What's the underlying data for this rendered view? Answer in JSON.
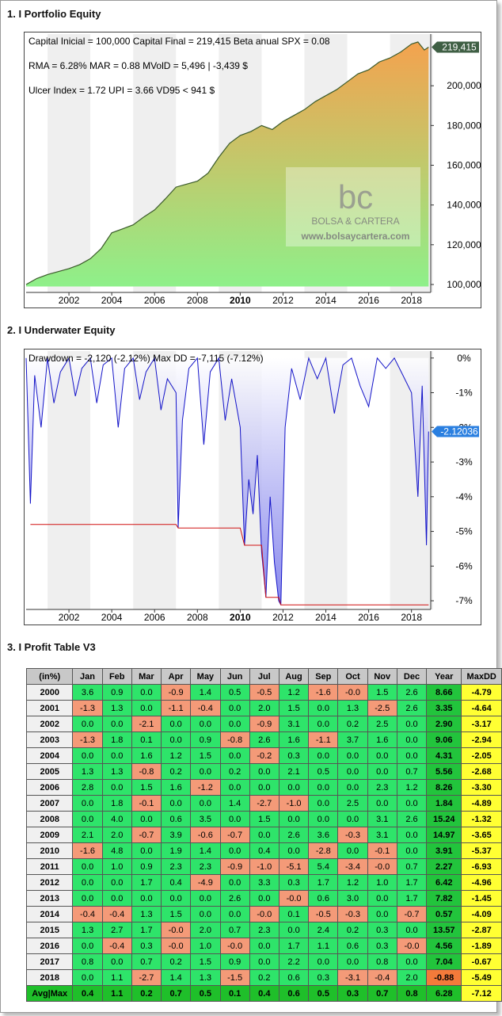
{
  "sections": {
    "equity_title": "1. I Portfolio Equity",
    "underwater_title": "2. I Underwater Equity",
    "profit_title": "3. I Profit Table V3"
  },
  "equity": {
    "line1": "Capital Inicial = 100,000  Capital Final = 219,415   Beta anual SPX = 0.08",
    "line2": "RMA = 6.28%   MAR = 0.88   MVolD = 5,496 | -3,439 $",
    "line3": "Ulcer Index = 1.72   UPI = 3.66   VD95 < 941 $",
    "last_label": "219,415",
    "watermark_logo": "bc",
    "watermark_name": "BOLSA & CARTERA",
    "watermark_url": "www.bolsaycartera.com",
    "colors": {
      "fill_top": "#f4a24e",
      "fill_bottom": "#8ef08a",
      "line": "#3a5a2a",
      "badge": "#3f5f44"
    }
  },
  "underwater": {
    "line1": "Drawdown = -2,120 (-2.12%)      Max DD = -7,115 (-7.12%)",
    "last_label": "-2.12036",
    "colors": {
      "line": "#1414c8",
      "maxdd": "#d01010",
      "badge": "#2a7fe0"
    }
  },
  "chart_data": [
    {
      "type": "area",
      "title": "1. I Portfolio Equity",
      "x_ticks": [
        "2002",
        "2004",
        "2006",
        "2008",
        "2010",
        "2012",
        "2014",
        "2016",
        "2018"
      ],
      "y_ticks": [
        "100,000",
        "120,000",
        "140,000",
        "160,000",
        "180,000",
        "200,000"
      ],
      "ylim": [
        96000,
        226000
      ],
      "xlim": [
        2000.0,
        2018.9
      ],
      "x": [
        2000.0,
        2000.5,
        2001.0,
        2001.5,
        2002.0,
        2002.5,
        2003.0,
        2003.5,
        2004.0,
        2004.5,
        2005.0,
        2005.5,
        2006.0,
        2006.5,
        2007.0,
        2007.5,
        2008.0,
        2008.5,
        2009.0,
        2009.5,
        2010.0,
        2010.5,
        2011.0,
        2011.5,
        2012.0,
        2012.5,
        2013.0,
        2013.5,
        2014.0,
        2014.5,
        2015.0,
        2015.5,
        2016.0,
        2016.5,
        2017.0,
        2017.5,
        2018.0,
        2018.3,
        2018.6,
        2018.8
      ],
      "y": [
        100000,
        103000,
        105000,
        106500,
        108000,
        110000,
        113000,
        118000,
        126000,
        128000,
        130000,
        134000,
        137500,
        143000,
        149000,
        150500,
        152000,
        156000,
        164000,
        171000,
        175000,
        177000,
        180000,
        178000,
        182000,
        185000,
        188000,
        192000,
        195000,
        198000,
        202000,
        206000,
        208000,
        212000,
        214000,
        217000,
        221000,
        222000,
        218000,
        219415
      ],
      "last_value": 219415
    },
    {
      "type": "line",
      "title": "2. I Underwater Equity",
      "x_ticks": [
        "2002",
        "2004",
        "2006",
        "2008",
        "2010",
        "2012",
        "2014",
        "2016",
        "2018"
      ],
      "y_ticks": [
        "0%",
        "-1%",
        "-2%",
        "-3%",
        "-4%",
        "-5%",
        "-6%",
        "-7%"
      ],
      "ylim": [
        -7.25,
        0.2
      ],
      "xlim": [
        2000.0,
        2018.9
      ],
      "x": [
        2000.0,
        2000.2,
        2000.4,
        2000.7,
        2001.0,
        2001.3,
        2001.6,
        2002.0,
        2002.3,
        2002.6,
        2003.0,
        2003.3,
        2003.6,
        2004.0,
        2004.3,
        2004.6,
        2005.0,
        2005.3,
        2005.6,
        2006.0,
        2006.3,
        2006.6,
        2007.0,
        2007.1,
        2007.3,
        2007.6,
        2008.0,
        2008.3,
        2008.6,
        2009.0,
        2009.3,
        2009.6,
        2010.0,
        2010.2,
        2010.4,
        2010.6,
        2010.8,
        2011.0,
        2011.2,
        2011.4,
        2011.6,
        2011.8,
        2011.9,
        2012.1,
        2012.4,
        2012.8,
        2013.2,
        2013.6,
        2014.0,
        2014.4,
        2014.8,
        2015.2,
        2015.6,
        2016.0,
        2016.4,
        2016.8,
        2017.2,
        2017.6,
        2018.0,
        2018.3,
        2018.5,
        2018.7,
        2018.8
      ],
      "y": [
        0,
        -4.2,
        -0.5,
        -2.0,
        0,
        -1.3,
        -0.4,
        0,
        -1.1,
        -0.3,
        0,
        -1.3,
        -0.2,
        0,
        -2.0,
        -0.3,
        0,
        -1.2,
        -0.4,
        0,
        -1.5,
        -0.6,
        -1.0,
        -4.9,
        -1.8,
        -0.3,
        0,
        -2.5,
        -0.4,
        0,
        -1.8,
        -0.6,
        -2.0,
        -5.4,
        -3.5,
        -4.5,
        -2.8,
        -5.6,
        -6.9,
        -4.0,
        -5.9,
        -7.0,
        -7.12,
        -2.0,
        -0.3,
        -1.2,
        0,
        -0.6,
        0,
        -1.6,
        -0.2,
        0,
        -0.8,
        -1.4,
        0,
        -0.3,
        0,
        -0.5,
        -1.0,
        -4.0,
        -0.8,
        -5.4,
        -2.12
      ],
      "maxdd_x": [
        2000.2,
        2007.0,
        2007.1,
        2010.0,
        2010.2,
        2011.0,
        2011.2,
        2011.8,
        2011.9,
        2018.8
      ],
      "maxdd_y": [
        -4.8,
        -4.8,
        -4.9,
        -4.9,
        -5.4,
        -5.4,
        -6.9,
        -6.9,
        -7.12,
        -7.12
      ],
      "last_value": -2.12036
    },
    {
      "type": "table",
      "title": "3. I Profit Table V3",
      "columns": [
        "(in%)",
        "Jan",
        "Feb",
        "Mar",
        "Apr",
        "May",
        "Jun",
        "Jul",
        "Aug",
        "Sep",
        "Oct",
        "Nov",
        "Dec",
        "Year",
        "MaxDD"
      ],
      "rows": [
        [
          "2000",
          "3.6",
          "0.9",
          "0.0",
          "-0.9",
          "1.4",
          "0.5",
          "-0.5",
          "1.2",
          "-1.6",
          "-0.0",
          "1.5",
          "2.6",
          "8.66",
          "-4.79"
        ],
        [
          "2001",
          "-1.3",
          "1.3",
          "0.0",
          "-1.1",
          "-0.4",
          "0.0",
          "2.0",
          "1.5",
          "0.0",
          "1.3",
          "-2.5",
          "2.6",
          "3.35",
          "-4.64"
        ],
        [
          "2002",
          "0.0",
          "0.0",
          "-2.1",
          "0.0",
          "0.0",
          "0.0",
          "-0.9",
          "3.1",
          "0.0",
          "0.2",
          "2.5",
          "0.0",
          "2.90",
          "-3.17"
        ],
        [
          "2003",
          "-1.3",
          "1.8",
          "0.1",
          "0.0",
          "0.9",
          "-0.8",
          "2.6",
          "1.6",
          "-1.1",
          "3.7",
          "1.6",
          "0.0",
          "9.06",
          "-2.94"
        ],
        [
          "2004",
          "0.0",
          "0.0",
          "1.6",
          "1.2",
          "1.5",
          "0.0",
          "-0.2",
          "0.3",
          "0.0",
          "0.0",
          "0.0",
          "0.0",
          "4.31",
          "-2.05"
        ],
        [
          "2005",
          "1.3",
          "1.3",
          "-0.8",
          "0.2",
          "0.0",
          "0.2",
          "0.0",
          "2.1",
          "0.5",
          "0.0",
          "0.0",
          "0.7",
          "5.56",
          "-2.68"
        ],
        [
          "2006",
          "2.8",
          "0.0",
          "1.5",
          "1.6",
          "-1.2",
          "0.0",
          "0.0",
          "0.0",
          "0.0",
          "0.0",
          "2.3",
          "1.2",
          "8.26",
          "-3.30"
        ],
        [
          "2007",
          "0.0",
          "1.8",
          "-0.1",
          "0.0",
          "0.0",
          "1.4",
          "-2.7",
          "-1.0",
          "0.0",
          "2.5",
          "0.0",
          "0.0",
          "1.84",
          "-4.89"
        ],
        [
          "2008",
          "0.0",
          "4.0",
          "0.0",
          "0.6",
          "3.5",
          "0.0",
          "1.5",
          "0.0",
          "0.0",
          "0.0",
          "3.1",
          "2.6",
          "15.24",
          "-1.32"
        ],
        [
          "2009",
          "2.1",
          "2.0",
          "-0.7",
          "3.9",
          "-0.6",
          "-0.7",
          "0.0",
          "2.6",
          "3.6",
          "-0.3",
          "3.1",
          "0.0",
          "14.97",
          "-3.65"
        ],
        [
          "2010",
          "-1.6",
          "4.8",
          "0.0",
          "1.9",
          "1.4",
          "0.0",
          "0.4",
          "0.0",
          "-2.8",
          "0.0",
          "-0.1",
          "0.0",
          "3.91",
          "-5.37"
        ],
        [
          "2011",
          "0.0",
          "1.0",
          "0.9",
          "2.3",
          "2.3",
          "-0.9",
          "-1.0",
          "-5.1",
          "5.4",
          "-3.4",
          "-0.0",
          "0.7",
          "2.27",
          "-6.93"
        ],
        [
          "2012",
          "0.0",
          "0.0",
          "1.7",
          "0.4",
          "-4.9",
          "0.0",
          "3.3",
          "0.3",
          "1.7",
          "1.2",
          "1.0",
          "1.7",
          "6.42",
          "-4.96"
        ],
        [
          "2013",
          "0.0",
          "0.0",
          "0.0",
          "0.0",
          "0.0",
          "2.6",
          "0.0",
          "-0.0",
          "0.6",
          "3.0",
          "0.0",
          "1.7",
          "7.82",
          "-1.45"
        ],
        [
          "2014",
          "-0.4",
          "-0.4",
          "1.3",
          "1.5",
          "0.0",
          "0.0",
          "-0.0",
          "0.1",
          "-0.5",
          "-0.3",
          "0.0",
          "-0.7",
          "0.57",
          "-4.09"
        ],
        [
          "2015",
          "1.3",
          "2.7",
          "1.7",
          "-0.0",
          "2.0",
          "0.7",
          "2.3",
          "0.0",
          "2.4",
          "0.2",
          "0.3",
          "0.0",
          "13.57",
          "-2.87"
        ],
        [
          "2016",
          "0.0",
          "-0.4",
          "0.3",
          "-0.0",
          "1.0",
          "-0.0",
          "0.0",
          "1.7",
          "1.1",
          "0.6",
          "0.3",
          "-0.0",
          "4.56",
          "-1.89"
        ],
        [
          "2017",
          "0.8",
          "0.0",
          "0.7",
          "0.2",
          "1.5",
          "0.9",
          "0.0",
          "2.2",
          "0.0",
          "0.0",
          "0.8",
          "0.0",
          "7.04",
          "-0.67"
        ],
        [
          "2018",
          "0.0",
          "1.1",
          "-2.7",
          "1.4",
          "1.3",
          "-1.5",
          "0.2",
          "0.6",
          "0.3",
          "-3.1",
          "-0.4",
          "2.0",
          "-0.88",
          "-5.49"
        ]
      ],
      "footer": [
        "Avg|Max",
        "0.4",
        "1.1",
        "0.2",
        "0.7",
        "0.5",
        "0.1",
        "0.4",
        "0.6",
        "0.5",
        "0.3",
        "0.7",
        "0.8",
        "6.28",
        "-7.12"
      ]
    }
  ]
}
